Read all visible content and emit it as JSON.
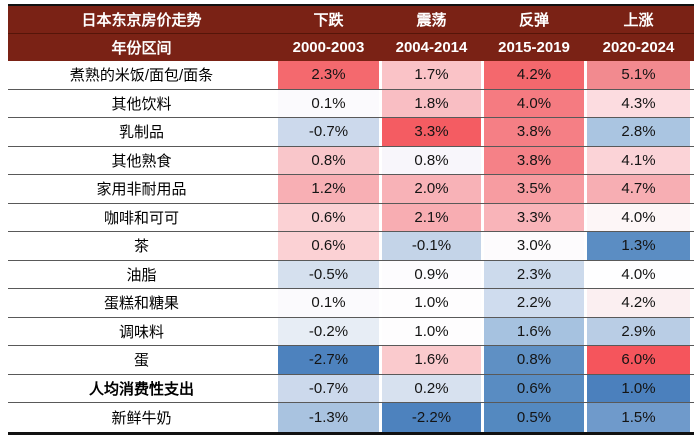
{
  "chart_data": {
    "type": "heatmap",
    "title": "日本东京房价走势",
    "row_header": "年份区间",
    "unit": "%",
    "column_groups": [
      {
        "trend": "下跌",
        "period": "2000-2003"
      },
      {
        "trend": "震荡",
        "period": "2004-2014"
      },
      {
        "trend": "反弹",
        "period": "2015-2019"
      },
      {
        "trend": "上涨",
        "period": "2020-2024"
      }
    ],
    "rows": [
      {
        "label": "煮熟的米饭/面包/面条",
        "values_pct": [
          2.3,
          1.7,
          4.2,
          5.1
        ]
      },
      {
        "label": "其他饮料",
        "values_pct": [
          0.1,
          1.8,
          4.0,
          4.3
        ]
      },
      {
        "label": "乳制品",
        "values_pct": [
          -0.7,
          3.3,
          3.8,
          2.8
        ]
      },
      {
        "label": "其他熟食",
        "values_pct": [
          0.8,
          0.8,
          3.8,
          4.1
        ]
      },
      {
        "label": "家用非耐用品",
        "values_pct": [
          1.2,
          2.0,
          3.5,
          4.7
        ]
      },
      {
        "label": "咖啡和可可",
        "values_pct": [
          0.6,
          2.1,
          3.3,
          4.0
        ]
      },
      {
        "label": "茶",
        "values_pct": [
          0.6,
          -0.1,
          3.0,
          1.3
        ]
      },
      {
        "label": "油脂",
        "values_pct": [
          -0.5,
          0.9,
          2.3,
          4.0
        ]
      },
      {
        "label": "蛋糕和糖果",
        "values_pct": [
          0.1,
          1.0,
          2.2,
          4.2
        ]
      },
      {
        "label": "调味料",
        "values_pct": [
          -0.2,
          1.0,
          1.6,
          2.9
        ]
      },
      {
        "label": "蛋",
        "values_pct": [
          -2.7,
          1.6,
          0.8,
          6.0
        ]
      },
      {
        "label": "人均消费性支出",
        "values_pct": [
          -0.7,
          0.2,
          0.6,
          1.0
        ]
      },
      {
        "label": "新鲜牛奶",
        "values_pct": [
          -1.3,
          -2.2,
          0.5,
          1.5
        ]
      }
    ],
    "color_scale": {
      "high_red": "#f4575e",
      "neutral_white": "#ffffff",
      "low_blue": "#4b80bd"
    },
    "legend_position": "none",
    "grid": "row-separators"
  },
  "header": {
    "title": "日本东京房价走势",
    "row_header": "年份区间",
    "columns": [
      {
        "trend": "下跌",
        "period": "2000-2003"
      },
      {
        "trend": "震荡",
        "period": "2004-2014"
      },
      {
        "trend": "反弹",
        "period": "2015-2019"
      },
      {
        "trend": "上涨",
        "period": "2020-2024"
      }
    ]
  },
  "colors": {
    "header_bg": "#7a2215",
    "header_text": "#ffffff",
    "rule_dark": "#111111",
    "row_separator": "#595959"
  },
  "rows": [
    {
      "label": "煮熟的米饭/面包/面条",
      "bold": false,
      "cells": [
        {
          "text": "2.3%",
          "bg": "#f4696e"
        },
        {
          "text": "1.7%",
          "bg": "#fac3c7"
        },
        {
          "text": "4.2%",
          "bg": "#f4686d"
        },
        {
          "text": "5.1%",
          "bg": "#f28a8f"
        }
      ]
    },
    {
      "label": "其他饮料",
      "bold": false,
      "cells": [
        {
          "text": "0.1%",
          "bg": "#fbfafd"
        },
        {
          "text": "1.8%",
          "bg": "#f9bec3"
        },
        {
          "text": "4.0%",
          "bg": "#f57b81"
        },
        {
          "text": "4.3%",
          "bg": "#fcdce0"
        }
      ]
    },
    {
      "label": "乳制品",
      "bold": false,
      "cells": [
        {
          "text": "-0.7%",
          "bg": "#ccd9ec"
        },
        {
          "text": "3.3%",
          "bg": "#f45c62"
        },
        {
          "text": "3.8%",
          "bg": "#f57f85"
        },
        {
          "text": "2.8%",
          "bg": "#aac5e1"
        }
      ]
    },
    {
      "label": "其他熟食",
      "bold": false,
      "cells": [
        {
          "text": "0.8%",
          "bg": "#f9c6ca"
        },
        {
          "text": "0.8%",
          "bg": "#f8f6fb"
        },
        {
          "text": "3.8%",
          "bg": "#f58187"
        },
        {
          "text": "4.1%",
          "bg": "#fbd3d7"
        }
      ]
    },
    {
      "label": "家用非耐用品",
      "bold": false,
      "cells": [
        {
          "text": "1.2%",
          "bg": "#f8afb4"
        },
        {
          "text": "2.0%",
          "bg": "#f8b2b7"
        },
        {
          "text": "3.5%",
          "bg": "#f79ca1"
        },
        {
          "text": "4.7%",
          "bg": "#f7aeb3"
        }
      ]
    },
    {
      "label": "咖啡和可可",
      "bold": false,
      "cells": [
        {
          "text": "0.6%",
          "bg": "#fbd1d4"
        },
        {
          "text": "2.1%",
          "bg": "#f8adb2"
        },
        {
          "text": "3.3%",
          "bg": "#f9b4b9"
        },
        {
          "text": "4.0%",
          "bg": "#fdf6f7"
        }
      ]
    },
    {
      "label": "茶",
      "bold": false,
      "cells": [
        {
          "text": "0.6%",
          "bg": "#fbd1d4"
        },
        {
          "text": "-0.1%",
          "bg": "#c4d4e8"
        },
        {
          "text": "3.0%",
          "bg": "#fdfbfd"
        },
        {
          "text": "1.3%",
          "bg": "#5b8dc3"
        }
      ]
    },
    {
      "label": "油脂",
      "bold": false,
      "cells": [
        {
          "text": "-0.5%",
          "bg": "#d5e0ee"
        },
        {
          "text": "0.9%",
          "bg": "#fdfcfe"
        },
        {
          "text": "2.3%",
          "bg": "#ccdaec"
        },
        {
          "text": "4.0%",
          "bg": "#fefeff"
        }
      ]
    },
    {
      "label": "蛋糕和糖果",
      "bold": false,
      "cells": [
        {
          "text": "0.1%",
          "bg": "#fbfafd"
        },
        {
          "text": "1.0%",
          "bg": "#fefdfe"
        },
        {
          "text": "2.2%",
          "bg": "#cfdcee"
        },
        {
          "text": "4.2%",
          "bg": "#fbeff1"
        }
      ]
    },
    {
      "label": "调味料",
      "bold": false,
      "cells": [
        {
          "text": "-0.2%",
          "bg": "#e7edf5"
        },
        {
          "text": "1.0%",
          "bg": "#fefdfe"
        },
        {
          "text": "1.6%",
          "bg": "#a6c2e0"
        },
        {
          "text": "2.9%",
          "bg": "#b9cde5"
        }
      ]
    },
    {
      "label": "蛋",
      "bold": false,
      "cells": [
        {
          "text": "-2.7%",
          "bg": "#4d82be"
        },
        {
          "text": "1.6%",
          "bg": "#facacd"
        },
        {
          "text": "0.8%",
          "bg": "#5f90c4"
        },
        {
          "text": "6.0%",
          "bg": "#f5555c"
        }
      ]
    },
    {
      "label": "人均消费性支出",
      "bold": true,
      "cells": [
        {
          "text": "-0.7%",
          "bg": "#ccd9ec"
        },
        {
          "text": "0.2%",
          "bg": "#d7e1ef"
        },
        {
          "text": "0.6%",
          "bg": "#598cc2"
        },
        {
          "text": "1.0%",
          "bg": "#4b80bd"
        }
      ]
    },
    {
      "label": "新鲜牛奶",
      "bold": false,
      "cells": [
        {
          "text": "-1.3%",
          "bg": "#a9c3e0"
        },
        {
          "text": "-2.2%",
          "bg": "#4d82be"
        },
        {
          "text": "0.5%",
          "bg": "#5489c0"
        },
        {
          "text": "1.5%",
          "bg": "#6f9acb"
        }
      ]
    }
  ]
}
